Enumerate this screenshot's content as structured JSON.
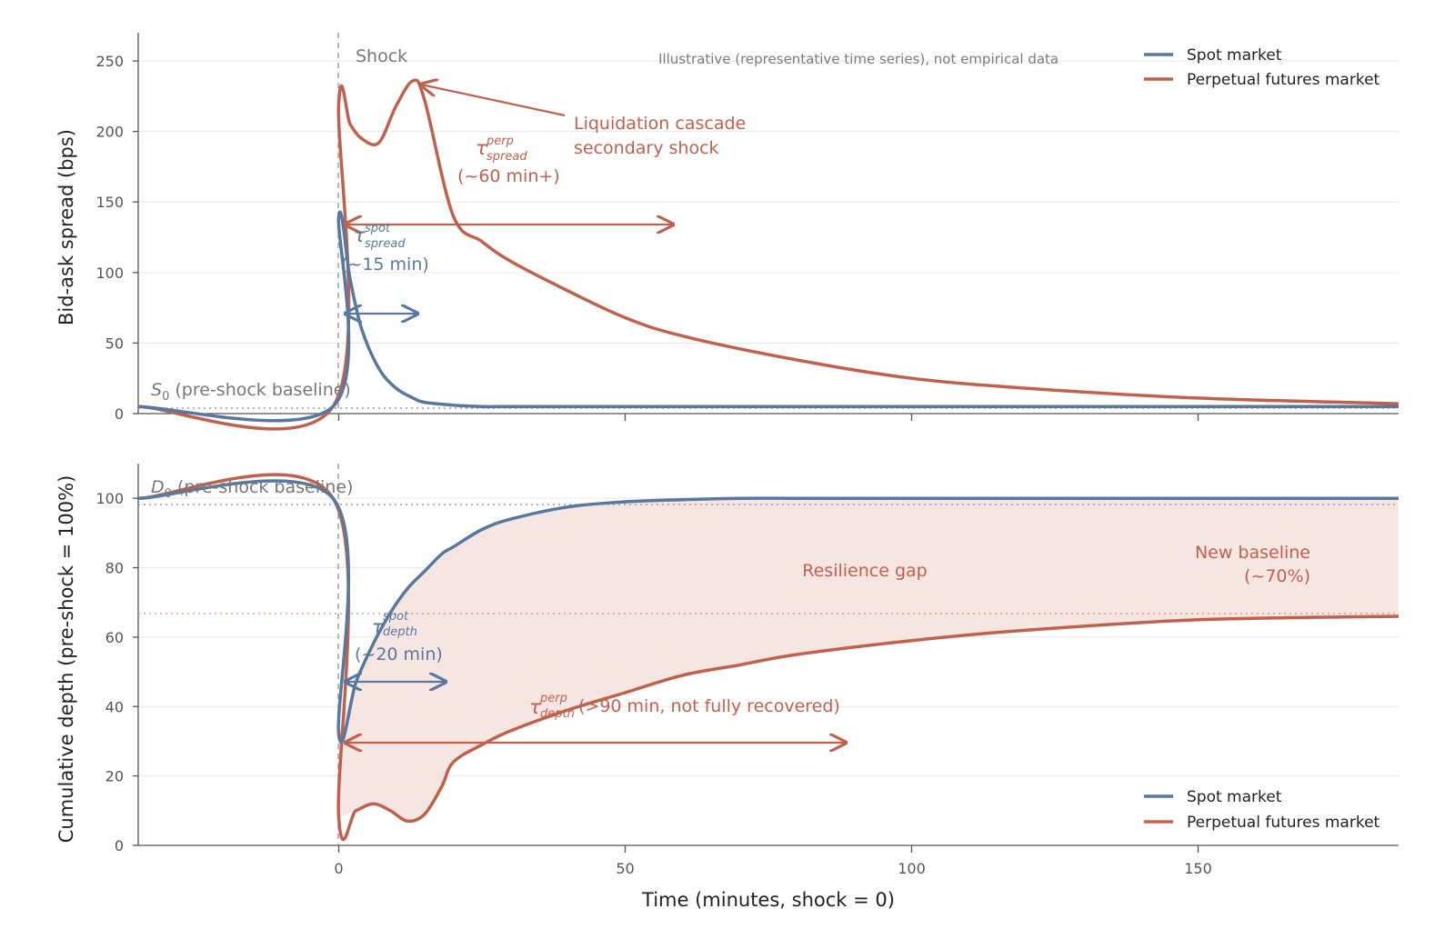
{
  "colors": {
    "spot": "#5878a0",
    "perp": "#c0614e",
    "fill": "#f6e6e2",
    "axis": "#555555",
    "grid": "#e6e6e6",
    "shock_line": "#999999"
  },
  "legend": {
    "spot_label": "Spot market",
    "perp_label": "Perpetual futures market"
  },
  "top": {
    "ylabel": "Bid-ask spread (bps)",
    "yticks": [
      "0",
      "50",
      "100",
      "150",
      "200",
      "250"
    ],
    "note": "Illustrative (representative time series), not empirical data",
    "shock_label": "Shock",
    "baseline_sym": "S",
    "baseline_sub": "0",
    "baseline_text": " (pre-shock baseline)",
    "cascade_line1": "Liquidation cascade",
    "cascade_line2": "secondary shock",
    "tau_sym": "τ",
    "tau_perp_sup": "perp",
    "tau_perp_sub": "spread",
    "tau_perp_value": "(~60 min+)",
    "tau_spot_sup": "spot",
    "tau_spot_sub": "spread",
    "tau_spot_value": "(~15 min)"
  },
  "bottom": {
    "ylabel": "Cumulative depth (pre-shock = 100%)",
    "yticks": [
      "0",
      "20",
      "40",
      "60",
      "80",
      "100"
    ],
    "baseline_sym": "D",
    "baseline_sub": "0",
    "baseline_text": " (pre-shock baseline)",
    "gap_label": "Resilience gap",
    "new_baseline_line1": "New baseline",
    "new_baseline_line2": "(~70%)",
    "tau_sym": "τ",
    "tau_spot_sup": "spot",
    "tau_spot_sub": "depth",
    "tau_spot_value": "(~20 min)",
    "tau_perp_sup": "perp",
    "tau_perp_sub": "depth",
    "tau_perp_value": " (>90 min, not fully recovered)"
  },
  "xaxis": {
    "label": "Time (minutes, shock = 0)",
    "ticks": [
      "0",
      "50",
      "100",
      "150"
    ]
  },
  "chart_data": [
    {
      "type": "line",
      "xlabel": "",
      "ylabel": "Bid-ask spread (bps)",
      "xlim": [
        -35,
        185
      ],
      "ylim": [
        0,
        270
      ],
      "grid": true,
      "legend": "top-right",
      "x": [
        -35,
        -1,
        0,
        2,
        4,
        7,
        10,
        13,
        15,
        20,
        25,
        30,
        40,
        50,
        60,
        80,
        100,
        120,
        150,
        185
      ],
      "series": [
        {
          "name": "Spot market",
          "values": [
            5,
            5,
            140,
            95,
            60,
            32,
            18,
            11,
            8,
            6,
            5,
            5,
            5,
            5,
            5,
            5,
            5,
            5,
            5,
            5
          ]
        },
        {
          "name": "Perpetual futures market",
          "values": [
            5,
            5,
            220,
            205,
            195,
            192,
            218,
            236,
            222,
            140,
            122,
            108,
            87,
            68,
            55,
            38,
            25,
            18,
            11,
            7
          ]
        }
      ],
      "annotations": [
        "Shock",
        "Liquidation cascade secondary shock",
        "(~60 min+)",
        "(~15 min)"
      ]
    },
    {
      "type": "line",
      "xlabel": "Time (minutes, shock = 0)",
      "ylabel": "Cumulative depth (pre-shock = 100%)",
      "xlim": [
        -35,
        185
      ],
      "ylim": [
        0,
        110
      ],
      "grid": true,
      "legend": "bottom-right",
      "x": [
        -35,
        -1,
        0,
        3,
        6,
        9,
        12,
        15,
        18,
        20,
        25,
        30,
        40,
        50,
        60,
        70,
        80,
        100,
        120,
        150,
        185
      ],
      "series": [
        {
          "name": "Spot market",
          "values": [
            100,
            100,
            32,
            47,
            58,
            67,
            74,
            79,
            84,
            86,
            91,
            94,
            97.5,
            99,
            99.6,
            100,
            100,
            100,
            100,
            100,
            100
          ]
        },
        {
          "name": "Perpetual futures market",
          "values": [
            100,
            100,
            8,
            10,
            12,
            10,
            7,
            9,
            17,
            24,
            29,
            33,
            39,
            44,
            49,
            52,
            55,
            59,
            62,
            65,
            66
          ]
        }
      ],
      "annotations": [
        "Resilience gap",
        "New baseline (~70%)",
        "(~20 min)",
        "(>90 min, not fully recovered)"
      ]
    }
  ]
}
